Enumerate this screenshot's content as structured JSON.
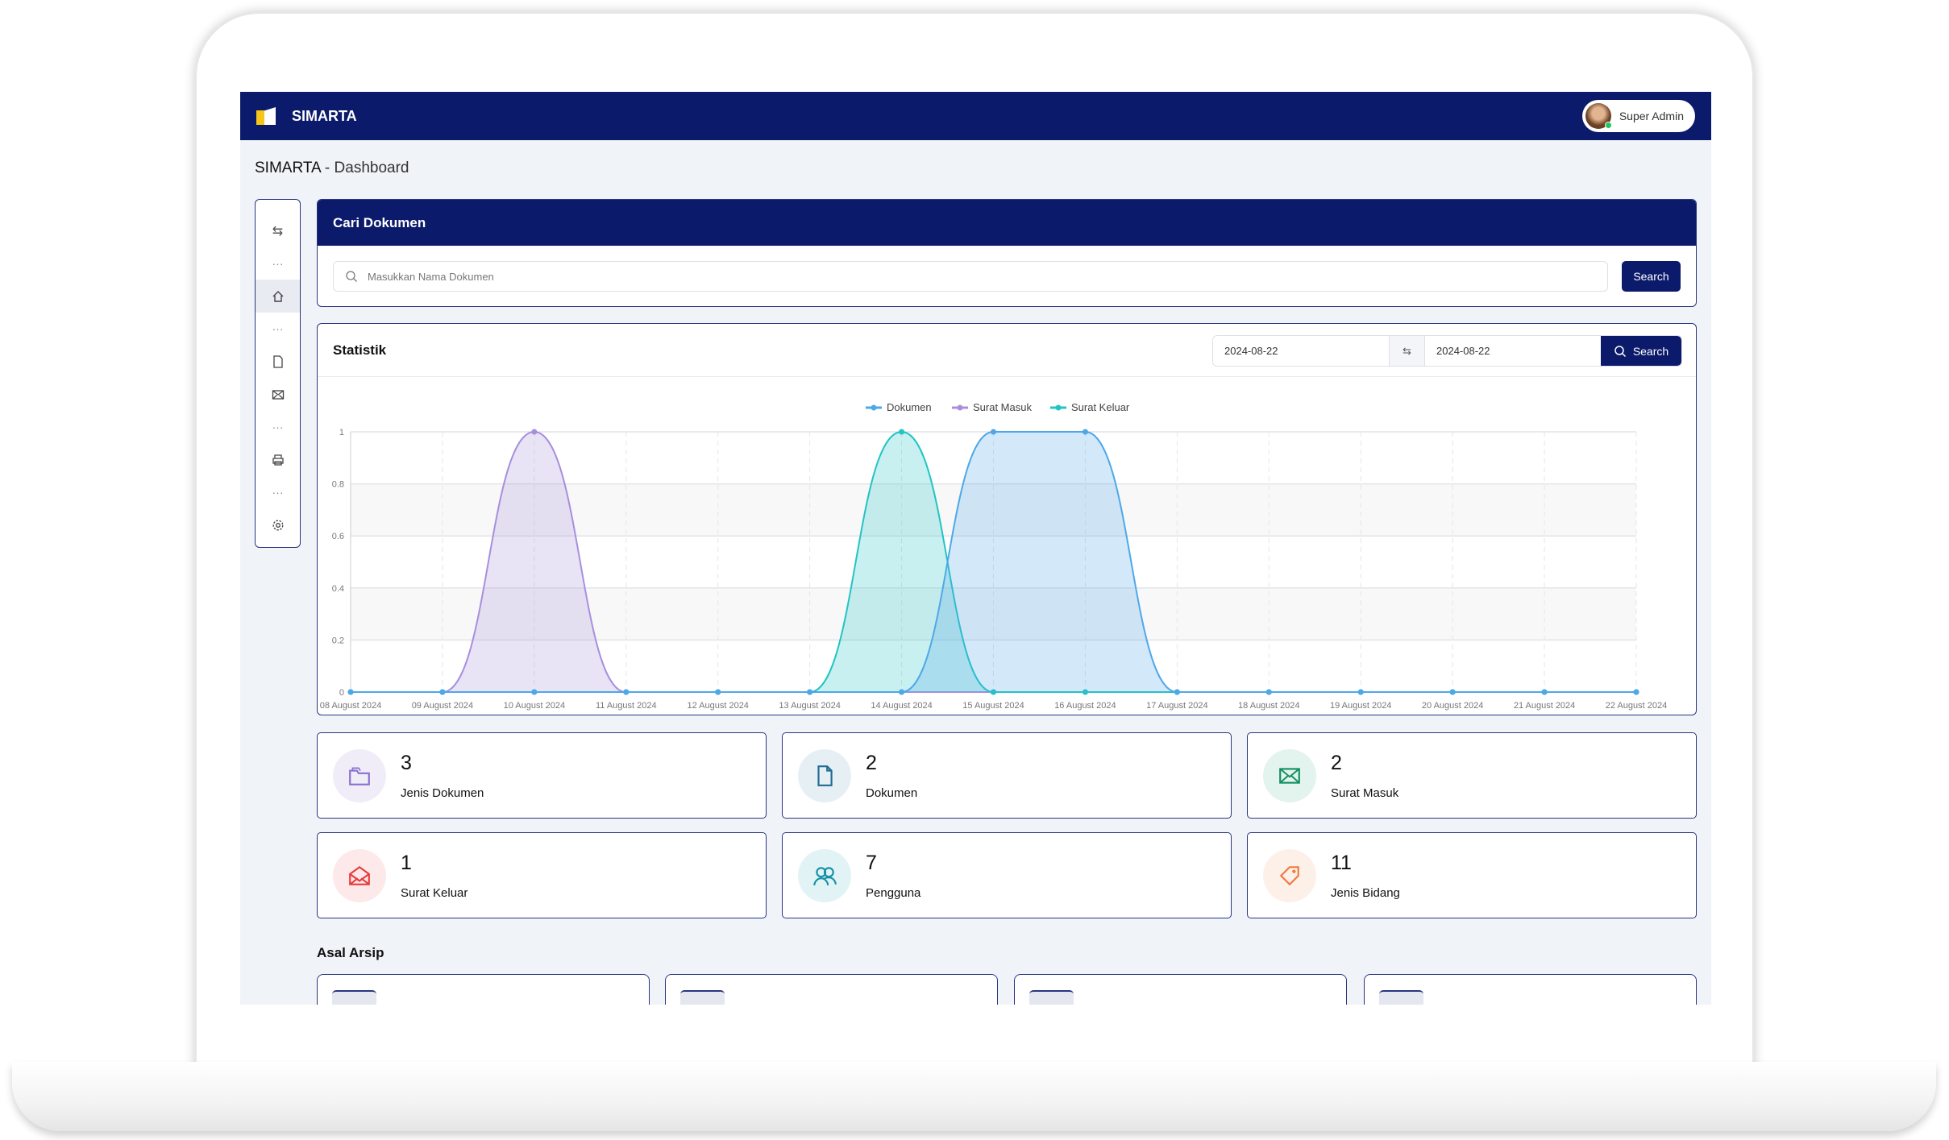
{
  "app": {
    "brand": "SIMARTA",
    "user": "Super Admin"
  },
  "breadcrumb": {
    "app": "SIMARTA",
    "separator": " - ",
    "page": "Dashboard"
  },
  "sidebar": {
    "items": [
      "collapse-icon",
      "home-icon",
      "file-icon",
      "mail-icon",
      "printer-icon",
      "gear-icon"
    ]
  },
  "search_card": {
    "title": "Cari Dokumen",
    "placeholder": "Masukkan Nama Dokumen",
    "button": "Search"
  },
  "stats_card": {
    "title": "Statistik",
    "date_from": "2024-08-22",
    "date_to": "2024-08-22",
    "button": "Search"
  },
  "chart_data": {
    "type": "area",
    "categories": [
      "08 August 2024",
      "09 August 2024",
      "10 August 2024",
      "11 August 2024",
      "12 August 2024",
      "13 August 2024",
      "14 August 2024",
      "15 August 2024",
      "16 August 2024",
      "17 August 2024",
      "18 August 2024",
      "19 August 2024",
      "20 August 2024",
      "21 August 2024",
      "22 August 2024"
    ],
    "series": [
      {
        "name": "Dokumen",
        "color": "#4ea8e8",
        "values": [
          0,
          0,
          0,
          0,
          0,
          0,
          0,
          1,
          1,
          0,
          0,
          0,
          0,
          0,
          0
        ]
      },
      {
        "name": "Surat Masuk",
        "color": "#a88fdc",
        "values": [
          0,
          0,
          1,
          0,
          0,
          0,
          0,
          0,
          0,
          0,
          0,
          0,
          0,
          0,
          0
        ]
      },
      {
        "name": "Surat Keluar",
        "color": "#22c4c4",
        "values": [
          0,
          0,
          0,
          0,
          0,
          0,
          1,
          0,
          0,
          0,
          0,
          0,
          0,
          0,
          0
        ]
      }
    ],
    "yticks": [
      "0",
      "0.2",
      "0.4",
      "0.6",
      "0.8",
      "1"
    ],
    "ylim": [
      0,
      1
    ],
    "grid": true,
    "legend": "top-center"
  },
  "summary": [
    {
      "value": "3",
      "label": "Jenis Dokumen",
      "icon": "folder-icon",
      "color": "#8a6fd0",
      "bg": "#f0edf9"
    },
    {
      "value": "2",
      "label": "Dokumen",
      "icon": "file-icon",
      "color": "#1f6a93",
      "bg": "#e6f0f4"
    },
    {
      "value": "2",
      "label": "Surat Masuk",
      "icon": "mail-icon",
      "color": "#119060",
      "bg": "#e3f3ee"
    },
    {
      "value": "1",
      "label": "Surat Keluar",
      "icon": "mail-open-icon",
      "color": "#ea3b3b",
      "bg": "#fde9e9"
    },
    {
      "value": "7",
      "label": "Pengguna",
      "icon": "users-icon",
      "color": "#1590a5",
      "bg": "#e2f3f6"
    },
    {
      "value": "11",
      "label": "Jenis Bidang",
      "icon": "tag-icon",
      "color": "#f07a3a",
      "bg": "#fdf0e9"
    }
  ],
  "asal_arsip": {
    "title": "Asal Arsip"
  }
}
